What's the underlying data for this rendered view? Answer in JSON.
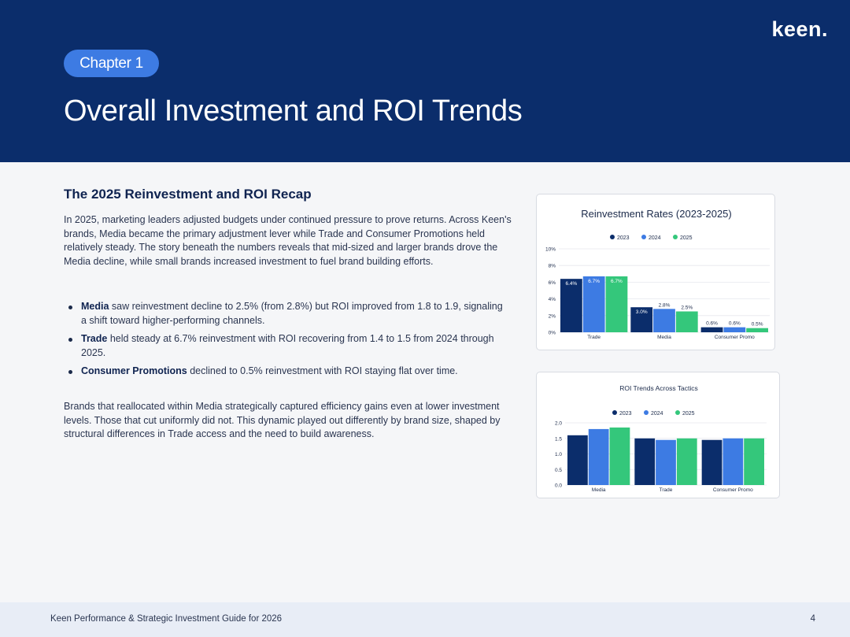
{
  "brand": {
    "logo": "keen."
  },
  "header": {
    "chapter": "Chapter 1",
    "title": "Overall Investment and ROI Trends"
  },
  "content": {
    "section_title": "The 2025 Reinvestment and ROI Recap",
    "intro": "In 2025, marketing leaders adjusted budgets under continued pressure to prove returns. Across Keen's brands, Media became the primary adjustment lever while Trade and Consumer Promotions held relatively steady. The story beneath the numbers reveals that mid-sized and larger brands drove the Media decline, while small brands increased investment to fuel brand building efforts.",
    "bullets": [
      {
        "term": "Media",
        "text": " saw reinvestment decline to 2.5% (from 2.8%) but ROI improved from 1.8 to 1.9, signaling a shift toward higher-performing channels."
      },
      {
        "term": "Trade",
        "text": " held steady at 6.7% reinvestment with ROI recovering from 1.4 to 1.5 from 2024 through 2025."
      },
      {
        "term": "Consumer Promotions",
        "text": " declined to 0.5% reinvestment with ROI staying flat over time."
      }
    ],
    "closing": "Brands that reallocated within Media strategically captured efficiency gains even at lower investment levels. Those that cut uniformly did not. This dynamic played out differently by brand size, shaped by structural differences in Trade access and the need to build awareness."
  },
  "colors": {
    "s2023": "#0b2d6b",
    "s2024": "#3d7be3",
    "s2025": "#34c77b"
  },
  "chart_data": [
    {
      "type": "bar",
      "title": "Reinvestment Rates (2023-2025)",
      "categories": [
        "Trade",
        "Media",
        "Consumer Promo"
      ],
      "series": [
        {
          "name": "2023",
          "values": [
            6.4,
            3.0,
            0.6
          ],
          "labels": [
            "6.4%",
            "3.0%",
            "0.6%"
          ]
        },
        {
          "name": "2024",
          "values": [
            6.7,
            2.8,
            0.6
          ],
          "labels": [
            "6.7%",
            "2.8%",
            "0.6%"
          ]
        },
        {
          "name": "2025",
          "values": [
            6.7,
            2.5,
            0.5
          ],
          "labels": [
            "6.7%",
            "2.5%",
            "0.5%"
          ]
        }
      ],
      "yticks": [
        "0%",
        "2%",
        "4%",
        "6%",
        "8%",
        "10%"
      ],
      "ylim": [
        0,
        10
      ],
      "legend": "top-center",
      "grid": true
    },
    {
      "type": "bar",
      "title": "ROI Trends Across Tactics",
      "categories": [
        "Media",
        "Trade",
        "Consumer Promo"
      ],
      "series": [
        {
          "name": "2023",
          "values": [
            1.6,
            1.5,
            1.45
          ]
        },
        {
          "name": "2024",
          "values": [
            1.8,
            1.45,
            1.5
          ]
        },
        {
          "name": "2025",
          "values": [
            1.85,
            1.5,
            1.5
          ]
        }
      ],
      "yticks": [
        "0.0",
        "0.5",
        "1.0",
        "1.5",
        "2.0"
      ],
      "ylim": [
        0,
        2
      ],
      "legend": "top-center",
      "grid": true
    }
  ],
  "footer": {
    "text": "Keen Performance & Strategic Investment Guide for 2026",
    "page": "4"
  }
}
